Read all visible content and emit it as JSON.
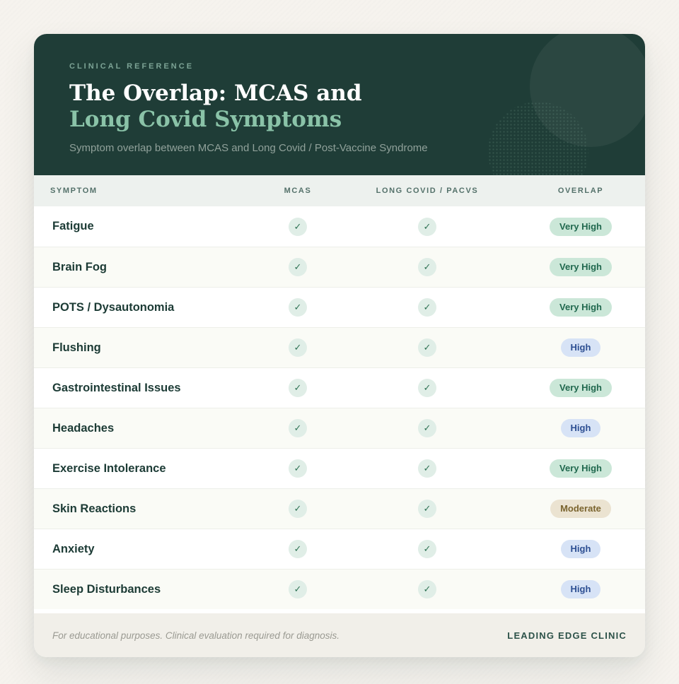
{
  "theme": {
    "page-bg": "#f6f3ee",
    "card-bg": "#ffffff",
    "header-bg": "#1f3d37",
    "title-color": "#ffffff",
    "title-accent": "#8ac3a8",
    "eyebrow-color": "#7ca395",
    "subtitle-color": "#90a19a",
    "thead-bg": "#edf1ee",
    "thead-text": "#54716a",
    "row-bg": "#ffffff",
    "row-alt-bg": "#fafbf6",
    "row-border": "#edefe9",
    "symptom-color": "#1c3b35",
    "check-bg": "#e0eee7",
    "check-color": "#2f7355",
    "footer-bg": "#f1efe9",
    "footer-text": "#9a9a92",
    "brand-color": "#2d5249"
  },
  "header": {
    "eyebrow": "CLINICAL REFERENCE",
    "title_line1": "The Overlap: MCAS and",
    "title_line2": "Long Covid Symptoms",
    "subtitle": "Symptom overlap between MCAS and Long Covid / Post-Vaccine Syndrome"
  },
  "table": {
    "columns": [
      "SYMPTOM",
      "MCAS",
      "LONG COVID / PACVS",
      "OVERLAP"
    ],
    "check_glyph": "✓",
    "badges": {
      "Very High": {
        "bg": "#cbe7d8",
        "text": "#20684e"
      },
      "High": {
        "bg": "#d7e3f6",
        "text": "#2d4f92"
      },
      "Moderate": {
        "bg": "#ebe3d1",
        "text": "#7a642e"
      }
    },
    "rows": [
      {
        "symptom": "Fatigue",
        "mcas": true,
        "long_covid": true,
        "overlap": "Very High"
      },
      {
        "symptom": "Brain Fog",
        "mcas": true,
        "long_covid": true,
        "overlap": "Very High"
      },
      {
        "symptom": "POTS / Dysautonomia",
        "mcas": true,
        "long_covid": true,
        "overlap": "Very High"
      },
      {
        "symptom": "Flushing",
        "mcas": true,
        "long_covid": true,
        "overlap": "High"
      },
      {
        "symptom": "Gastrointestinal Issues",
        "mcas": true,
        "long_covid": true,
        "overlap": "Very High"
      },
      {
        "symptom": "Headaches",
        "mcas": true,
        "long_covid": true,
        "overlap": "High"
      },
      {
        "symptom": "Exercise Intolerance",
        "mcas": true,
        "long_covid": true,
        "overlap": "Very High"
      },
      {
        "symptom": "Skin Reactions",
        "mcas": true,
        "long_covid": true,
        "overlap": "Moderate"
      },
      {
        "symptom": "Anxiety",
        "mcas": true,
        "long_covid": true,
        "overlap": "High"
      },
      {
        "symptom": "Sleep Disturbances",
        "mcas": true,
        "long_covid": true,
        "overlap": "High"
      }
    ]
  },
  "footer": {
    "disclaimer": "For educational purposes. Clinical evaluation required for diagnosis.",
    "brand": "LEADING EDGE CLINIC"
  }
}
